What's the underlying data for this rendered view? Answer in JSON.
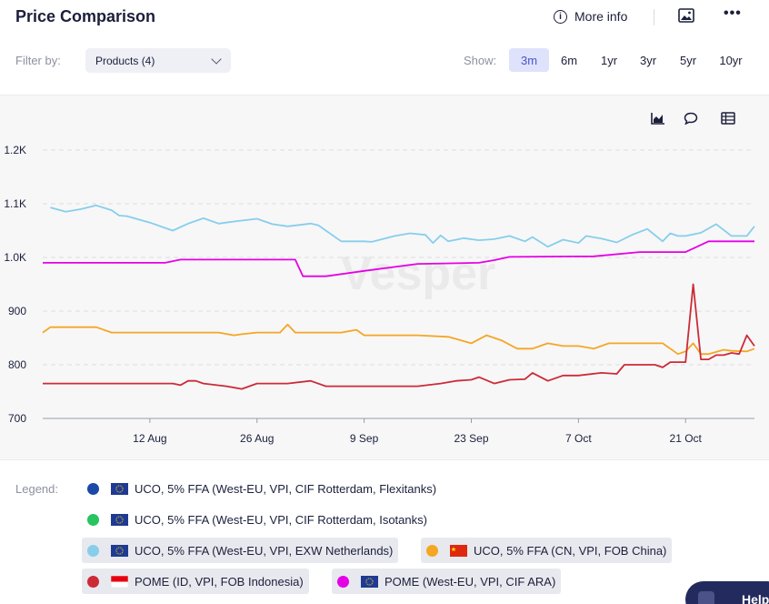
{
  "header": {
    "title": "Price Comparison",
    "more_info": "More info",
    "info_glyph": "i",
    "menu_glyph": "•••"
  },
  "icons": {
    "image": "image-icon",
    "menu": "more-icon",
    "info": "info-icon",
    "chart": "chart-icon",
    "comment": "comment-icon",
    "table": "table-icon"
  },
  "filter": {
    "label": "Filter by:",
    "value": "Products (4)"
  },
  "show": {
    "label": "Show:",
    "periods": [
      "3m",
      "6m",
      "1yr",
      "3yr",
      "5yr",
      "10yr"
    ],
    "active": "3m"
  },
  "watermark": "Vesper",
  "legend": {
    "label": "Legend:",
    "items": [
      {
        "name": "UCO, 5% FFA (West-EU, VPI, CIF Rotterdam, Flexitanks)",
        "color": "#1a49a8",
        "flag": "eu",
        "shown": false
      },
      {
        "name": "UCO, 5% FFA (West-EU, VPI, CIF Rotterdam, Isotanks)",
        "color": "#27c45f",
        "flag": "eu",
        "shown": false
      },
      {
        "name": "UCO, 5% FFA (West-EU, VPI, EXW Netherlands)",
        "color": "#87ceeb",
        "flag": "eu",
        "shown": true
      },
      {
        "name": "UCO, 5% FFA (CN, VPI, FOB China)",
        "color": "#f5a623",
        "flag": "cn",
        "shown": true
      },
      {
        "name": "POME (ID, VPI, FOB Indonesia)",
        "color": "#cc2b36",
        "flag": "id",
        "shown": true
      },
      {
        "name": "POME (West-EU, VPI, CIF ARA)",
        "color": "#e600e6",
        "flag": "eu",
        "shown": true
      }
    ]
  },
  "help": {
    "label": "Help"
  },
  "chart_data": {
    "type": "line",
    "title": "",
    "xlabel": "",
    "ylabel": "",
    "ylim": [
      700,
      1200
    ],
    "xlim": [
      "2024-07-29",
      "2024-10-30"
    ],
    "grid": true,
    "yticks": [
      700,
      800,
      900,
      1000,
      1100,
      1200
    ],
    "ytick_labels": [
      "700",
      "800",
      "900",
      "1.0K",
      "1.1K",
      "1.2K"
    ],
    "xticks": [
      "2024-08-12",
      "2024-08-26",
      "2024-09-09",
      "2024-09-23",
      "2024-10-07",
      "2024-10-21"
    ],
    "xtick_labels": [
      "12 Aug",
      "26 Aug",
      "9 Sep",
      "23 Sep",
      "7 Oct",
      "21 Oct"
    ],
    "legend_position": "bottom",
    "series": [
      {
        "name": "UCO, 5% FFA (West-EU, VPI, EXW Netherlands)",
        "color": "#87ceeb",
        "points": [
          [
            "2024-07-30",
            1093
          ],
          [
            "2024-08-01",
            1085
          ],
          [
            "2024-08-03",
            1090
          ],
          [
            "2024-08-05",
            1097
          ],
          [
            "2024-08-07",
            1088
          ],
          [
            "2024-08-08",
            1078
          ],
          [
            "2024-08-09",
            1077
          ],
          [
            "2024-08-12",
            1065
          ],
          [
            "2024-08-14",
            1055
          ],
          [
            "2024-08-15",
            1050
          ],
          [
            "2024-08-17",
            1063
          ],
          [
            "2024-08-19",
            1073
          ],
          [
            "2024-08-21",
            1063
          ],
          [
            "2024-08-23",
            1067
          ],
          [
            "2024-08-26",
            1072
          ],
          [
            "2024-08-28",
            1062
          ],
          [
            "2024-08-30",
            1058
          ],
          [
            "2024-09-02",
            1063
          ],
          [
            "2024-09-03",
            1060
          ],
          [
            "2024-09-06",
            1030
          ],
          [
            "2024-09-09",
            1030
          ],
          [
            "2024-09-10",
            1029
          ],
          [
            "2024-09-13",
            1040
          ],
          [
            "2024-09-15",
            1045
          ],
          [
            "2024-09-17",
            1042
          ],
          [
            "2024-09-18",
            1027
          ],
          [
            "2024-09-19",
            1041
          ],
          [
            "2024-09-20",
            1030
          ],
          [
            "2024-09-22",
            1036
          ],
          [
            "2024-09-24",
            1032
          ],
          [
            "2024-09-26",
            1034
          ],
          [
            "2024-09-28",
            1040
          ],
          [
            "2024-09-30",
            1030
          ],
          [
            "2024-10-01",
            1038
          ],
          [
            "2024-10-03",
            1020
          ],
          [
            "2024-10-05",
            1033
          ],
          [
            "2024-10-07",
            1027
          ],
          [
            "2024-10-08",
            1040
          ],
          [
            "2024-10-10",
            1035
          ],
          [
            "2024-10-12",
            1028
          ],
          [
            "2024-10-14",
            1042
          ],
          [
            "2024-10-16",
            1053
          ],
          [
            "2024-10-18",
            1030
          ],
          [
            "2024-10-19",
            1045
          ],
          [
            "2024-10-20",
            1040
          ],
          [
            "2024-10-21",
            1040
          ],
          [
            "2024-10-23",
            1046
          ],
          [
            "2024-10-25",
            1062
          ],
          [
            "2024-10-27",
            1040
          ],
          [
            "2024-10-29",
            1040
          ],
          [
            "2024-10-30",
            1058
          ]
        ]
      },
      {
        "name": "UCO, 5% FFA (CN, VPI, FOB China)",
        "color": "#f5a623",
        "points": [
          [
            "2024-07-29",
            860
          ],
          [
            "2024-07-30",
            870
          ],
          [
            "2024-08-05",
            870
          ],
          [
            "2024-08-07",
            860
          ],
          [
            "2024-08-14",
            860
          ],
          [
            "2024-08-21",
            860
          ],
          [
            "2024-08-23",
            855
          ],
          [
            "2024-08-24",
            857
          ],
          [
            "2024-08-26",
            860
          ],
          [
            "2024-08-29",
            860
          ],
          [
            "2024-08-30",
            875
          ],
          [
            "2024-08-31",
            860
          ],
          [
            "2024-09-06",
            860
          ],
          [
            "2024-09-08",
            865
          ],
          [
            "2024-09-09",
            855
          ],
          [
            "2024-09-16",
            855
          ],
          [
            "2024-09-20",
            852
          ],
          [
            "2024-09-23",
            840
          ],
          [
            "2024-09-25",
            855
          ],
          [
            "2024-09-27",
            845
          ],
          [
            "2024-09-29",
            830
          ],
          [
            "2024-10-01",
            830
          ],
          [
            "2024-10-03",
            840
          ],
          [
            "2024-10-05",
            835
          ],
          [
            "2024-10-07",
            835
          ],
          [
            "2024-10-09",
            830
          ],
          [
            "2024-10-11",
            840
          ],
          [
            "2024-10-18",
            840
          ],
          [
            "2024-10-20",
            820
          ],
          [
            "2024-10-21",
            825
          ],
          [
            "2024-10-22",
            840
          ],
          [
            "2024-10-23",
            820
          ],
          [
            "2024-10-24",
            820
          ],
          [
            "2024-10-26",
            828
          ],
          [
            "2024-10-27",
            826
          ],
          [
            "2024-10-29",
            825
          ],
          [
            "2024-10-30",
            830
          ]
        ]
      },
      {
        "name": "POME (ID, VPI, FOB Indonesia)",
        "color": "#cc2b36",
        "points": [
          [
            "2024-07-29",
            765
          ],
          [
            "2024-08-09",
            765
          ],
          [
            "2024-08-12",
            765
          ],
          [
            "2024-08-15",
            765
          ],
          [
            "2024-08-16",
            762
          ],
          [
            "2024-08-17",
            770
          ],
          [
            "2024-08-18",
            770
          ],
          [
            "2024-08-19",
            765
          ],
          [
            "2024-08-22",
            760
          ],
          [
            "2024-08-24",
            755
          ],
          [
            "2024-08-26",
            765
          ],
          [
            "2024-08-30",
            765
          ],
          [
            "2024-09-02",
            770
          ],
          [
            "2024-09-04",
            760
          ],
          [
            "2024-09-16",
            760
          ],
          [
            "2024-09-19",
            765
          ],
          [
            "2024-09-21",
            770
          ],
          [
            "2024-09-23",
            772
          ],
          [
            "2024-09-24",
            777
          ],
          [
            "2024-09-26",
            765
          ],
          [
            "2024-09-28",
            772
          ],
          [
            "2024-09-30",
            773
          ],
          [
            "2024-10-01",
            785
          ],
          [
            "2024-10-03",
            770
          ],
          [
            "2024-10-05",
            780
          ],
          [
            "2024-10-07",
            780
          ],
          [
            "2024-10-10",
            785
          ],
          [
            "2024-10-12",
            783
          ],
          [
            "2024-10-13",
            800
          ],
          [
            "2024-10-17",
            800
          ],
          [
            "2024-10-18",
            795
          ],
          [
            "2024-10-19",
            805
          ],
          [
            "2024-10-21",
            805
          ],
          [
            "2024-10-22",
            950
          ],
          [
            "2024-10-23",
            810
          ],
          [
            "2024-10-24",
            810
          ],
          [
            "2024-10-25",
            818
          ],
          [
            "2024-10-26",
            818
          ],
          [
            "2024-10-27",
            822
          ],
          [
            "2024-10-28",
            820
          ],
          [
            "2024-10-29",
            855
          ],
          [
            "2024-10-30",
            835
          ]
        ]
      },
      {
        "name": "POME (West-EU, VPI, CIF ARA)",
        "color": "#e600e6",
        "points": [
          [
            "2024-07-29",
            990
          ],
          [
            "2024-08-12",
            990
          ],
          [
            "2024-08-14",
            990
          ],
          [
            "2024-08-16",
            996
          ],
          [
            "2024-08-31",
            996
          ],
          [
            "2024-09-01",
            965
          ],
          [
            "2024-09-04",
            965
          ],
          [
            "2024-09-09",
            975
          ],
          [
            "2024-09-16",
            988
          ],
          [
            "2024-09-24",
            990
          ],
          [
            "2024-09-26",
            995
          ],
          [
            "2024-09-28",
            1001
          ],
          [
            "2024-10-09",
            1002
          ],
          [
            "2024-10-15",
            1010
          ],
          [
            "2024-10-21",
            1010
          ],
          [
            "2024-10-24",
            1030
          ],
          [
            "2024-10-30",
            1030
          ]
        ]
      }
    ]
  }
}
